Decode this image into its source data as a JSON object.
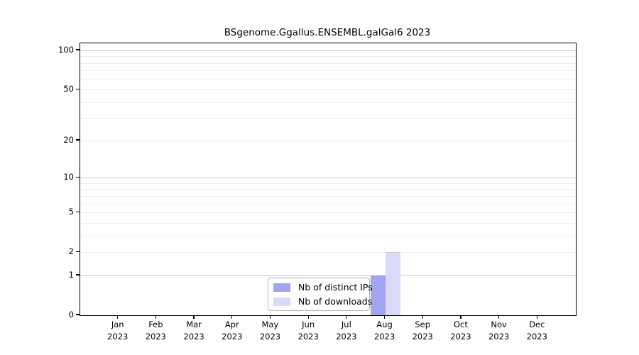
{
  "chart_data": {
    "type": "bar",
    "title": "BSgenome.Ggallus.ENSEMBL.galGal6 2023",
    "categories": [
      "Jan 2023",
      "Feb 2023",
      "Mar 2023",
      "Apr 2023",
      "May 2023",
      "Jun 2023",
      "Jul 2023",
      "Aug 2023",
      "Sep 2023",
      "Oct 2023",
      "Nov 2023",
      "Dec 2023"
    ],
    "series": [
      {
        "name": "Nb of distinct IPs",
        "color": "#a3a3ef",
        "edge_color": "#8f8fe0",
        "values": [
          0,
          0,
          0,
          0,
          0,
          0,
          0,
          1,
          0,
          0,
          0,
          0
        ]
      },
      {
        "name": "Nb of downloads",
        "color": "#d9d9f8",
        "edge_color": "#c9c9f2",
        "values": [
          0,
          0,
          0,
          0,
          0,
          0,
          0,
          2,
          0,
          0,
          0,
          0
        ]
      }
    ],
    "xlabel": "",
    "ylabel": "",
    "yscale": "log10(1+x)",
    "ylim": [
      0,
      113
    ],
    "yticks": [
      0,
      1,
      2,
      5,
      10,
      20,
      50,
      100
    ],
    "grid_major_values": [
      1,
      10,
      100
    ],
    "grid_minor_values": [
      2,
      3,
      4,
      5,
      6,
      7,
      8,
      9,
      20,
      30,
      40,
      50,
      60,
      70,
      80,
      90
    ],
    "grid": "on",
    "legend_position": "bottom-center",
    "colors": {
      "grid_major": "#c9c9c9",
      "grid_minor": "#ededed",
      "axis": "#000000",
      "background": "#ffffff",
      "legend_border": "#b5b5b5"
    }
  }
}
